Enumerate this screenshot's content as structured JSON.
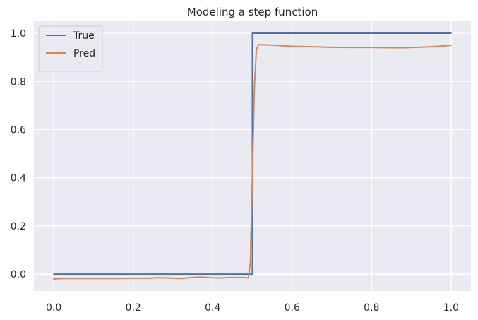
{
  "chart_data": {
    "type": "line",
    "title": "Modeling a step function",
    "xlabel": "",
    "ylabel": "",
    "xlim": [
      -0.05,
      1.05
    ],
    "ylim": [
      -0.07,
      1.05
    ],
    "xticks": [
      0.0,
      0.2,
      0.4,
      0.6,
      0.8,
      1.0
    ],
    "xtick_labels": [
      "0.0",
      "0.2",
      "0.4",
      "0.6",
      "0.8",
      "1.0"
    ],
    "yticks": [
      0.0,
      0.2,
      0.4,
      0.6,
      0.8,
      1.0
    ],
    "ytick_labels": [
      "0.0",
      "0.2",
      "0.4",
      "0.6",
      "0.8",
      "1.0"
    ],
    "grid": true,
    "legend": {
      "position": "upper-left",
      "entries": [
        "True",
        "Pred"
      ]
    },
    "series": [
      {
        "name": "True",
        "color": "#4c72b0",
        "x": [
          0.0,
          0.5,
          0.5,
          1.0
        ],
        "y": [
          0.0,
          0.0,
          1.0,
          1.0
        ]
      },
      {
        "name": "Pred",
        "color": "#dd8452",
        "x": [
          0.0,
          0.02,
          0.05,
          0.1,
          0.15,
          0.2,
          0.24,
          0.26,
          0.29,
          0.32,
          0.35,
          0.37,
          0.4,
          0.42,
          0.44,
          0.46,
          0.48,
          0.49,
          0.495,
          0.5,
          0.505,
          0.51,
          0.515,
          0.53,
          0.56,
          0.6,
          0.65,
          0.7,
          0.75,
          0.8,
          0.85,
          0.88,
          0.92,
          0.96,
          1.0
        ],
        "y": [
          -0.02,
          -0.018,
          -0.018,
          -0.018,
          -0.018,
          -0.017,
          -0.017,
          -0.015,
          -0.016,
          -0.018,
          -0.014,
          -0.012,
          -0.015,
          -0.016,
          -0.014,
          -0.014,
          -0.014,
          -0.016,
          0.05,
          0.42,
          0.78,
          0.93,
          0.953,
          0.952,
          0.95,
          0.946,
          0.944,
          0.942,
          0.941,
          0.941,
          0.94,
          0.94,
          0.942,
          0.945,
          0.95
        ]
      }
    ]
  }
}
